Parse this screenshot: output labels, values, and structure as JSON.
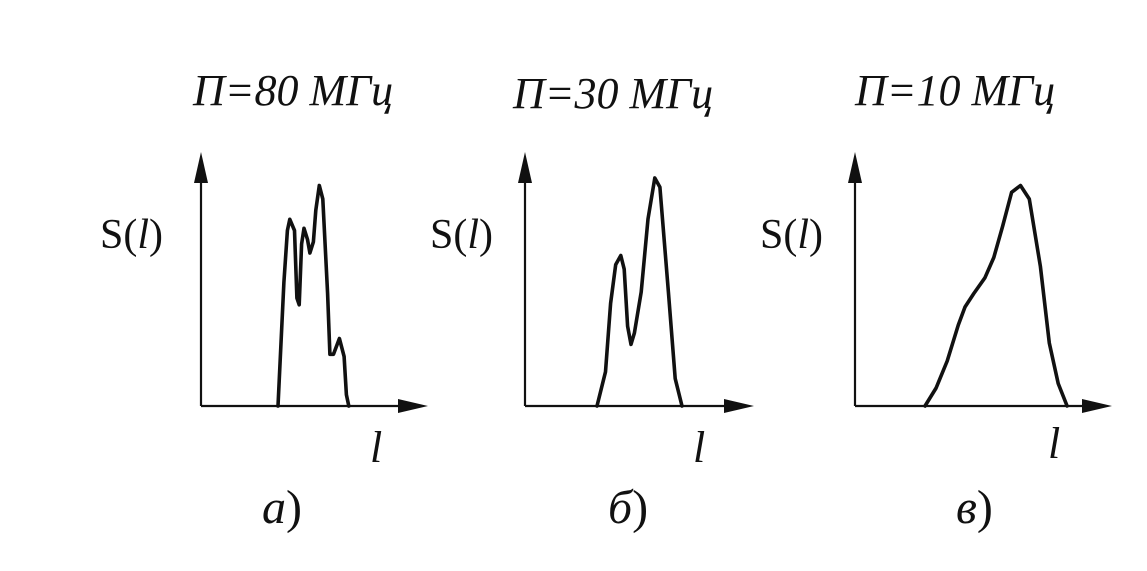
{
  "panels": [
    {
      "title": "П=80 МГц",
      "y_label_main": "S(",
      "y_label_var": "l",
      "y_label_close": ")",
      "x_label": "l",
      "caption_letter": "а",
      "caption_paren": ")",
      "curve": [
        [
          0,
          0
        ],
        [
          0.05,
          0.55
        ],
        [
          0.08,
          0.78
        ],
        [
          0.1,
          0.83
        ],
        [
          0.14,
          0.78
        ],
        [
          0.16,
          0.48
        ],
        [
          0.18,
          0.45
        ],
        [
          0.2,
          0.72
        ],
        [
          0.22,
          0.79
        ],
        [
          0.25,
          0.74
        ],
        [
          0.27,
          0.68
        ],
        [
          0.3,
          0.73
        ],
        [
          0.32,
          0.87
        ],
        [
          0.35,
          0.98
        ],
        [
          0.38,
          0.92
        ],
        [
          0.42,
          0.5
        ],
        [
          0.44,
          0.23
        ],
        [
          0.47,
          0.23
        ],
        [
          0.52,
          0.3
        ],
        [
          0.56,
          0.22
        ],
        [
          0.58,
          0.05
        ],
        [
          0.6,
          0
        ]
      ]
    },
    {
      "title": "П=30 МГц",
      "y_label_main": "S(",
      "y_label_var": "l",
      "y_label_close": ")",
      "x_label": "l",
      "caption_letter": "б",
      "caption_paren": ")",
      "curve": [
        [
          0,
          0
        ],
        [
          0.05,
          0.15
        ],
        [
          0.08,
          0.45
        ],
        [
          0.11,
          0.62
        ],
        [
          0.14,
          0.66
        ],
        [
          0.16,
          0.6
        ],
        [
          0.18,
          0.35
        ],
        [
          0.2,
          0.27
        ],
        [
          0.22,
          0.32
        ],
        [
          0.26,
          0.5
        ],
        [
          0.3,
          0.82
        ],
        [
          0.34,
          1.0
        ],
        [
          0.37,
          0.96
        ],
        [
          0.42,
          0.5
        ],
        [
          0.46,
          0.12
        ],
        [
          0.5,
          0
        ]
      ]
    },
    {
      "title": "П=10 МГц",
      "y_label_main": "S(",
      "y_label_var": "l",
      "y_label_close": ")",
      "x_label": "l",
      "caption_letter": "в",
      "caption_paren": ")",
      "curve": [
        [
          0,
          0
        ],
        [
          0.05,
          0.08
        ],
        [
          0.1,
          0.2
        ],
        [
          0.15,
          0.36
        ],
        [
          0.18,
          0.44
        ],
        [
          0.22,
          0.5
        ],
        [
          0.27,
          0.57
        ],
        [
          0.31,
          0.66
        ],
        [
          0.35,
          0.8
        ],
        [
          0.39,
          0.95
        ],
        [
          0.43,
          0.98
        ],
        [
          0.47,
          0.92
        ],
        [
          0.52,
          0.62
        ],
        [
          0.56,
          0.28
        ],
        [
          0.6,
          0.1
        ],
        [
          0.64,
          0
        ]
      ]
    }
  ]
}
